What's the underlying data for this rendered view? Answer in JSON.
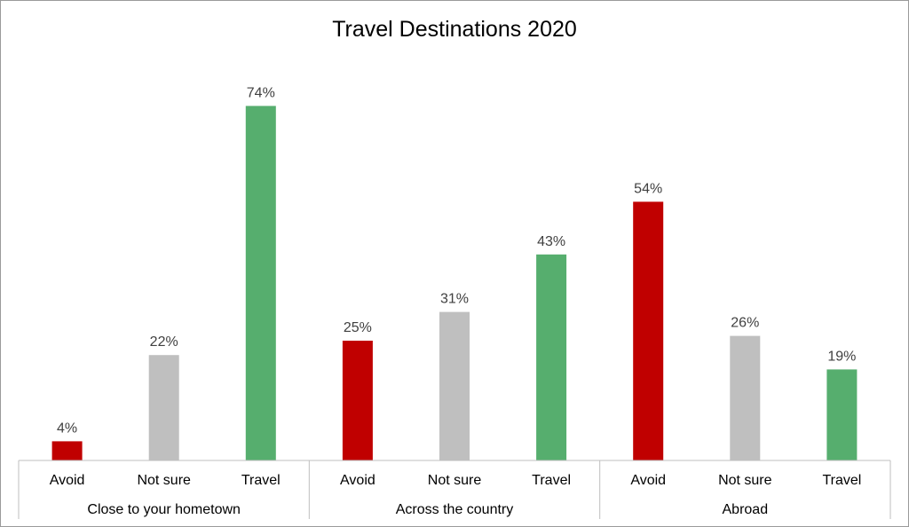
{
  "chart_data": {
    "type": "bar",
    "title": "Travel Destinations 2020",
    "xlabel": "",
    "ylabel": "",
    "ylim": [
      0,
      80
    ],
    "grid": false,
    "legend": "none",
    "value_suffix": "%",
    "groups": [
      {
        "name": "Close to your hometown",
        "categories": [
          "Avoid",
          "Not sure",
          "Travel"
        ],
        "values": [
          4,
          22,
          74
        ]
      },
      {
        "name": "Across the country",
        "categories": [
          "Avoid",
          "Not sure",
          "Travel"
        ],
        "values": [
          25,
          31,
          43
        ]
      },
      {
        "name": "Abroad",
        "categories": [
          "Avoid",
          "Not sure",
          "Travel"
        ],
        "values": [
          54,
          26,
          19
        ]
      }
    ],
    "colors": {
      "Avoid": "#c00000",
      "Not sure": "#bfbfbf",
      "Travel": "#56ae6e"
    }
  }
}
